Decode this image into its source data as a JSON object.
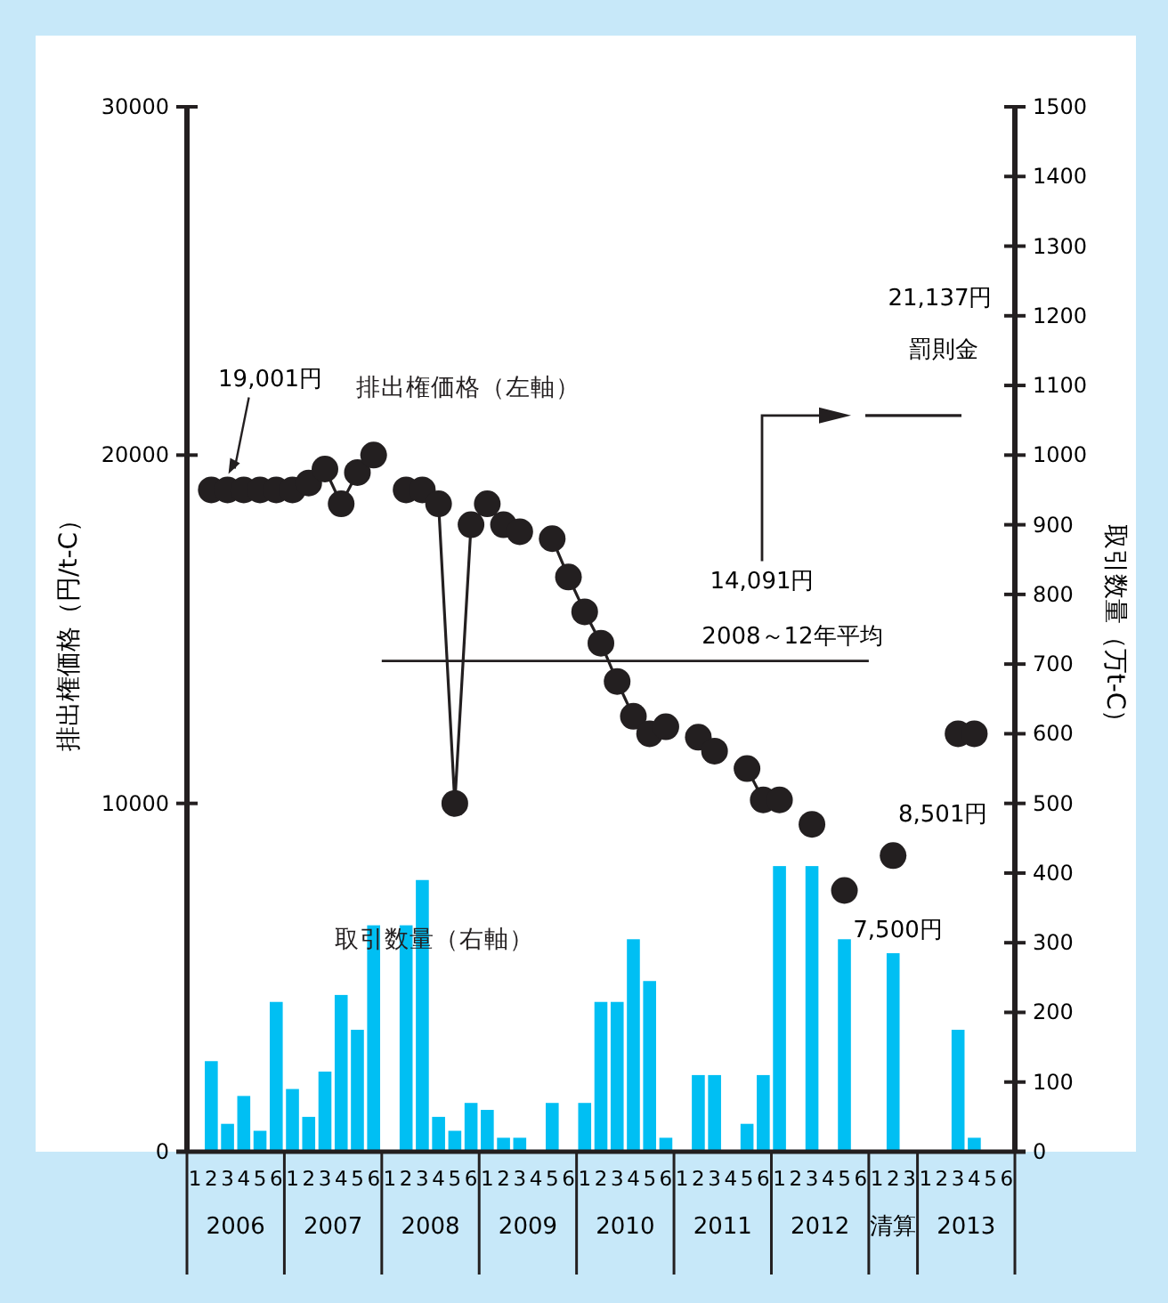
{
  "chart_data": {
    "type": "line",
    "ylabel": "排出権価格（円/t-C）",
    "y2label": "取引数量（万t-C）",
    "categories": [
      "1",
      "2",
      "3",
      "4",
      "5",
      "6",
      "1",
      "2",
      "3",
      "4",
      "5",
      "6",
      "1",
      "2",
      "3",
      "4",
      "5",
      "6",
      "1",
      "2",
      "3",
      "4",
      "5",
      "6",
      "1",
      "2",
      "3",
      "4",
      "5",
      "6",
      "1",
      "2",
      "3",
      "4",
      "5",
      "6",
      "1",
      "2",
      "3",
      "4",
      "5",
      "6",
      "1",
      "2",
      "3",
      "1",
      "2",
      "3",
      "4",
      "5",
      "6"
    ],
    "annotations": [
      "2006",
      "2007",
      "2008",
      "2009",
      "2010",
      "2011",
      "2012",
      "清算",
      "2013",
      {
        "text": "14,091円",
        "y": 14091
      },
      "21,137円"
    ],
    "series": [
      {
        "name": "排出権価格（左軸）",
        "color": "#231f20",
        "values": [
          null,
          19000,
          19001,
          19000,
          19000,
          19000,
          19000,
          19200,
          19600,
          18600,
          19500,
          20000,
          null,
          19000,
          19000,
          18600,
          10000,
          18000,
          18600,
          18000,
          17800,
          null,
          17600,
          16500,
          15500,
          14600,
          13500,
          12500,
          12000,
          12200,
          null,
          11900,
          11500,
          null,
          11000,
          10100,
          10100,
          null,
          9400,
          null,
          7500,
          null,
          null,
          8501,
          null,
          null,
          null,
          12000,
          12000,
          null,
          null
        ],
        "value_labels": [
          null,
          null,
          "19,001円",
          null,
          null,
          null,
          null,
          null,
          null,
          null,
          null,
          null,
          null,
          null,
          null,
          null,
          null,
          null,
          null,
          null,
          null,
          null,
          null,
          null,
          null,
          null,
          null,
          null,
          null,
          null,
          null,
          null,
          null,
          null,
          null,
          null,
          null,
          null,
          null,
          null,
          "7,500円",
          null,
          null,
          "8,501円",
          null,
          null,
          null,
          null,
          null,
          null,
          null
        ]
      },
      {
        "name": "取引数量（右軸）",
        "type": "bar",
        "axis": "y2",
        "color": "#00bff3",
        "values": [
          null,
          130,
          40,
          80,
          30,
          215,
          90,
          50,
          115,
          225,
          175,
          325,
          null,
          325,
          390,
          50,
          30,
          70,
          60,
          20,
          20,
          null,
          70,
          null,
          70,
          215,
          215,
          305,
          245,
          20,
          null,
          110,
          110,
          null,
          40,
          110,
          410,
          null,
          410,
          null,
          305,
          null,
          null,
          285,
          null,
          null,
          null,
          175,
          20,
          null,
          null
        ]
      }
    ],
    "ylim": [
      0,
      30000
    ],
    "yticks": [
      0,
      10000,
      20000,
      30000
    ],
    "y2lim": [
      0,
      1500
    ],
    "y2ticks": [
      0,
      100,
      200,
      300,
      400,
      500,
      600,
      700,
      800,
      900,
      1000,
      1100,
      1200,
      1300,
      1400,
      1500
    ],
    "ref_lines": [
      {
        "axis": "y",
        "value": 14091,
        "label": "2008～12年平均"
      },
      {
        "axis": "y",
        "value": 21137,
        "label": "罰則金"
      }
    ],
    "marker": "circle",
    "line_style": "solid",
    "grid": false
  }
}
